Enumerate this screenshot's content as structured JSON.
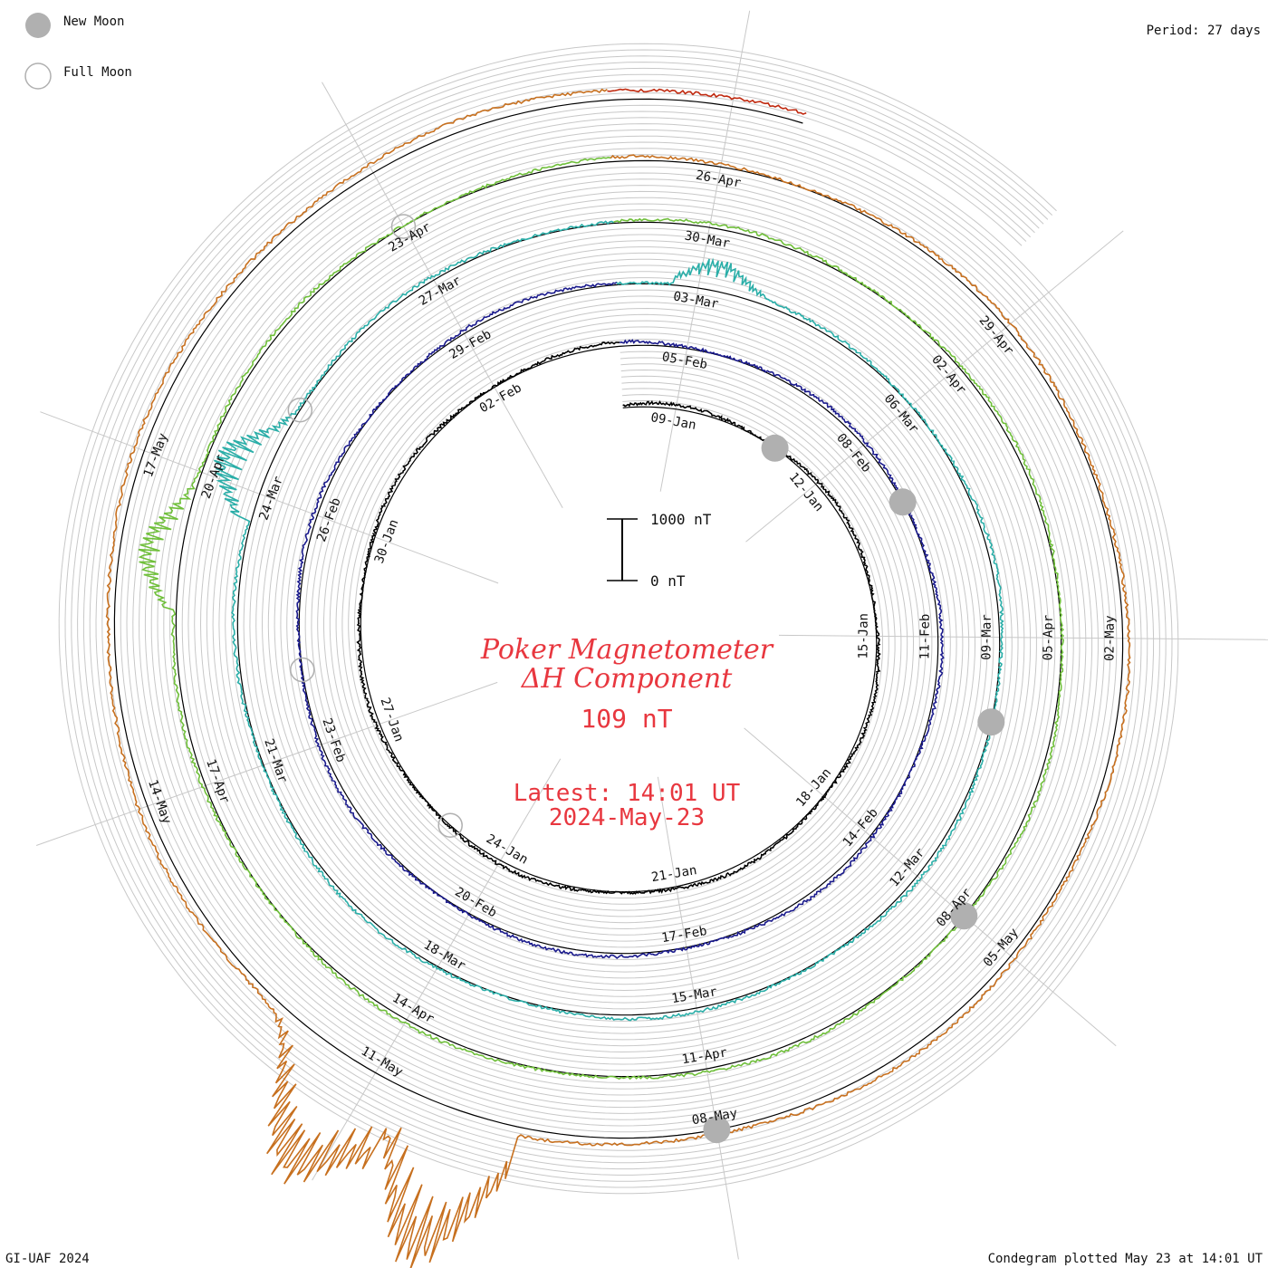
{
  "legend": {
    "new_moon_label": "New Moon",
    "full_moon_label": "Full Moon",
    "new_moon_color": "#b0b0b0",
    "full_moon_color": "#b0b0b0"
  },
  "period_label": "Period: 27 days",
  "footer_left": "GI-UAF 2024",
  "footer_right": "Condegram plotted May 23 at 14:01 UT",
  "scale_bar": {
    "top_label": "1000 nT",
    "bottom_label": "0 nT"
  },
  "center": {
    "title_line1": "Poker Magnetometer",
    "title_line2": "ΔH Component",
    "current_value": "109 nT",
    "latest_line1": "Latest: 14:01 UT",
    "latest_line2": "2024-May-23"
  },
  "chart_data": {
    "type": "condegram-spiral",
    "start_date": "2024-01-08",
    "end_date": "2024-05-23",
    "period_days": 27,
    "component": "ΔH",
    "units": "nT",
    "date_labels": [
      "09-Jan",
      "12-Jan",
      "15-Jan",
      "18-Jan",
      "21-Jan",
      "24-Jan",
      "27-Jan",
      "30-Jan",
      "02-Feb",
      "05-Feb",
      "08-Feb",
      "11-Feb",
      "14-Feb",
      "17-Feb",
      "20-Feb",
      "23-Feb",
      "26-Feb",
      "29-Feb",
      "03-Mar",
      "06-Mar",
      "09-Mar",
      "12-Mar",
      "15-Mar",
      "18-Mar",
      "21-Mar",
      "24-Mar",
      "27-Mar",
      "30-Mar",
      "02-Apr",
      "05-Apr",
      "08-Apr",
      "11-Apr",
      "14-Apr",
      "17-Apr",
      "20-Apr",
      "23-Apr",
      "26-Apr",
      "29-Apr",
      "02-May",
      "05-May",
      "08-May",
      "11-May",
      "14-May",
      "17-May"
    ],
    "new_moons": [
      "2024-01-11",
      "2024-02-09",
      "2024-03-10",
      "2024-04-08",
      "2024-05-08"
    ],
    "full_moons": [
      "2024-01-25",
      "2024-02-24",
      "2024-03-25",
      "2024-04-23"
    ],
    "storm_events": [
      {
        "date": "2024-03-03",
        "peak_nT": 500
      },
      {
        "date": "2024-03-24",
        "peak_nT": 900
      },
      {
        "date": "2024-04-19",
        "peak_nT": 700
      },
      {
        "date": "2024-05-10",
        "peak_nT": 2600
      },
      {
        "date": "2024-05-11",
        "peak_nT": 2200
      }
    ],
    "spiral_colors": [
      "#000000",
      "#1a1a8c",
      "#2a4fb5",
      "#2aaea8",
      "#6fbf3a",
      "#b8a21f",
      "#c7701f",
      "#c0290f"
    ]
  }
}
